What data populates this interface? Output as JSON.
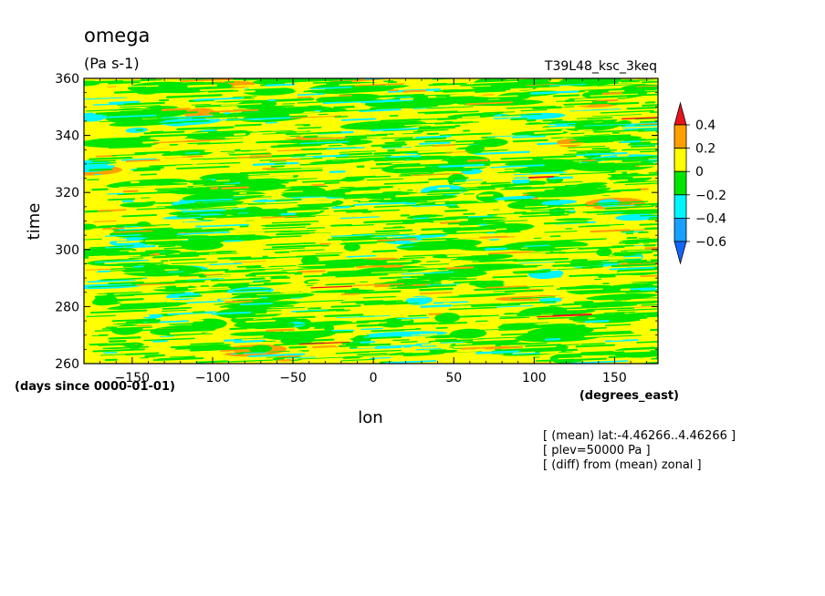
{
  "chart_data": {
    "type": "heatmap",
    "title": "omega",
    "units": "(Pa s-1)",
    "run_label": "T39L48_ksc_3keq",
    "xlabel": "lon",
    "x_units": "(degrees_east)",
    "ylabel": "time",
    "y_units": "(days since 0000-01-01)",
    "xlim": [
      -180,
      177
    ],
    "ylim": [
      260,
      360
    ],
    "x_ticks": [
      -150,
      -100,
      -50,
      0,
      50,
      100,
      150
    ],
    "y_ticks": [
      260,
      280,
      300,
      320,
      340,
      360
    ],
    "x_tick_labels": [
      "−150",
      "−100",
      "−50",
      "0",
      "50",
      "100",
      "150"
    ],
    "colorbar": {
      "levels": [
        0.4,
        0.2,
        0,
        -0.2,
        -0.4,
        -0.6
      ],
      "labels": [
        "0.4",
        "0.2",
        "0",
        "−0.2",
        "−0.4",
        "−0.6"
      ],
      "colors": [
        "#e8141c",
        "#ffa000",
        "#ffff00",
        "#00e600",
        "#00f5ff",
        "#18a0ff",
        "#1464ff"
      ]
    },
    "dominant_colors": [
      "#ffff00",
      "#00e600",
      "#00f5ff",
      "#ffa000"
    ],
    "notes": [
      "[ (mean) lat:-4.46266..4.46266 ]",
      "[ plev=50000 Pa ]",
      "[ (diff) from (mean) zonal ]"
    ]
  }
}
